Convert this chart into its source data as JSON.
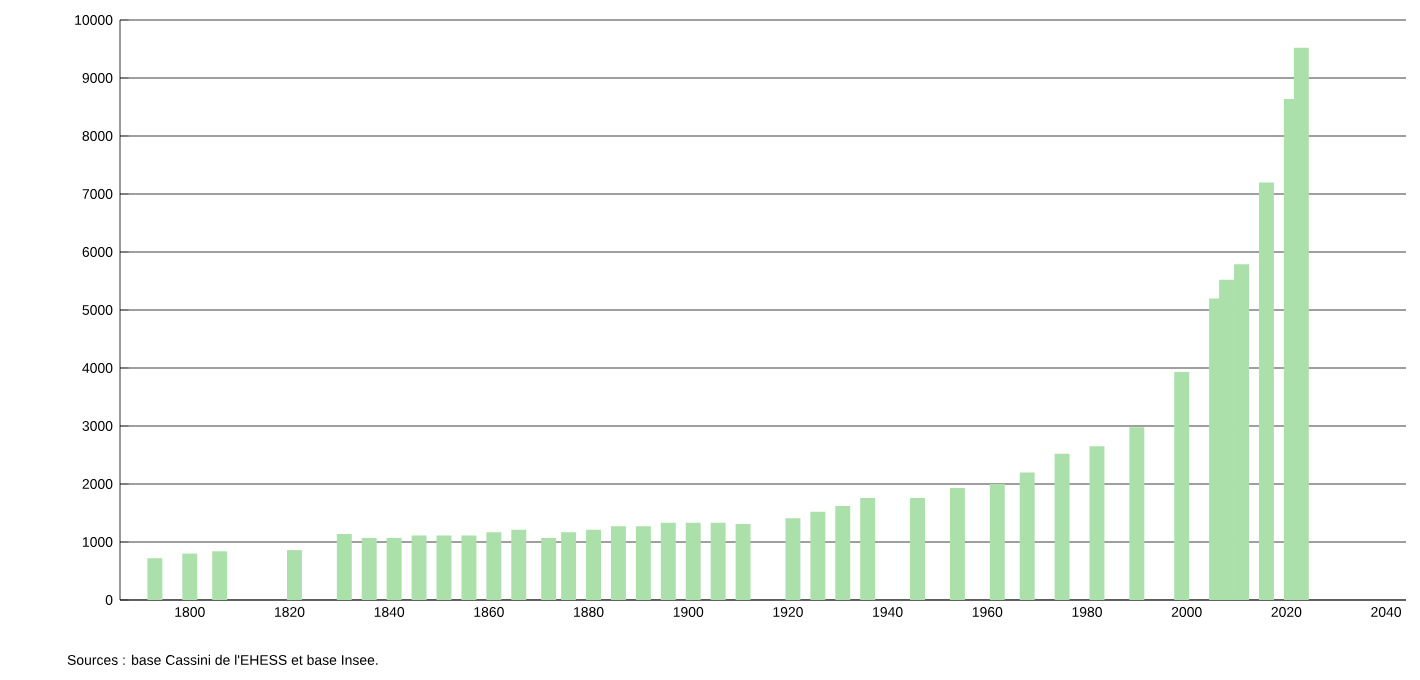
{
  "chart_data": {
    "type": "bar",
    "x": [
      1793,
      1800,
      1806,
      1821,
      1831,
      1836,
      1841,
      1846,
      1851,
      1856,
      1861,
      1866,
      1872,
      1876,
      1881,
      1886,
      1891,
      1896,
      1901,
      1906,
      1911,
      1921,
      1926,
      1931,
      1936,
      1946,
      1954,
      1962,
      1968,
      1975,
      1982,
      1990,
      1999,
      2006,
      2008,
      2011,
      2016,
      2021,
      2023
    ],
    "values": [
      720,
      800,
      840,
      860,
      1140,
      1070,
      1070,
      1110,
      1110,
      1110,
      1170,
      1210,
      1070,
      1170,
      1210,
      1270,
      1270,
      1330,
      1330,
      1330,
      1310,
      1410,
      1520,
      1620,
      1760,
      1760,
      1930,
      2000,
      2200,
      2520,
      2650,
      2980,
      3930,
      5200,
      5520,
      5790,
      7200,
      8640,
      9520
    ],
    "color": "#abe0ab",
    "xlim": [
      1786,
      2044
    ],
    "ylim": [
      0,
      10000
    ],
    "xticks": [
      1800,
      1820,
      1840,
      1860,
      1880,
      1900,
      1920,
      1940,
      1960,
      1980,
      2000,
      2020,
      2040
    ],
    "yticks": [
      0,
      1000,
      2000,
      3000,
      4000,
      5000,
      6000,
      7000,
      8000,
      9000,
      10000
    ],
    "grid": "y",
    "annotations": [
      "Sources : base Cassini de l'EHESS et base Insee."
    ]
  }
}
